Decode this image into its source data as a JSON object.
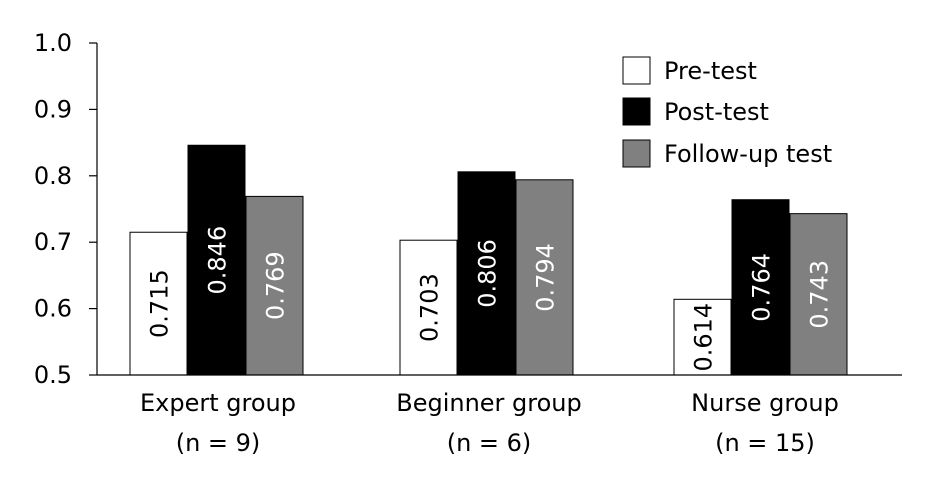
{
  "chart_data": {
    "type": "bar",
    "categories": [
      "Expert group",
      "Beginner group",
      "Nurse group"
    ],
    "category_n_labels": [
      "(n = 9)",
      "(n = 6)",
      "(n = 15)"
    ],
    "series": [
      {
        "name": "Pre-test",
        "values": [
          0.715,
          0.703,
          0.614
        ],
        "color": "#ffffff",
        "label_color": "#000000"
      },
      {
        "name": "Post-test",
        "values": [
          0.846,
          0.806,
          0.764
        ],
        "color": "#000000",
        "label_color": "#ffffff"
      },
      {
        "name": "Follow-up test",
        "values": [
          0.769,
          0.794,
          0.743
        ],
        "color": "#808080",
        "label_color": "#ffffff"
      }
    ],
    "ylim": [
      0.5,
      1.0
    ],
    "yticks": [
      "0.5",
      "0.6",
      "0.7",
      "0.8",
      "0.9",
      "1.0"
    ],
    "value_labels": [
      [
        "0.715",
        "0.703",
        "0.614"
      ],
      [
        "0.846",
        "0.806",
        "0.764"
      ],
      [
        "0.769",
        "0.794",
        "0.743"
      ]
    ],
    "legend_position": "top-right",
    "grid": false
  }
}
